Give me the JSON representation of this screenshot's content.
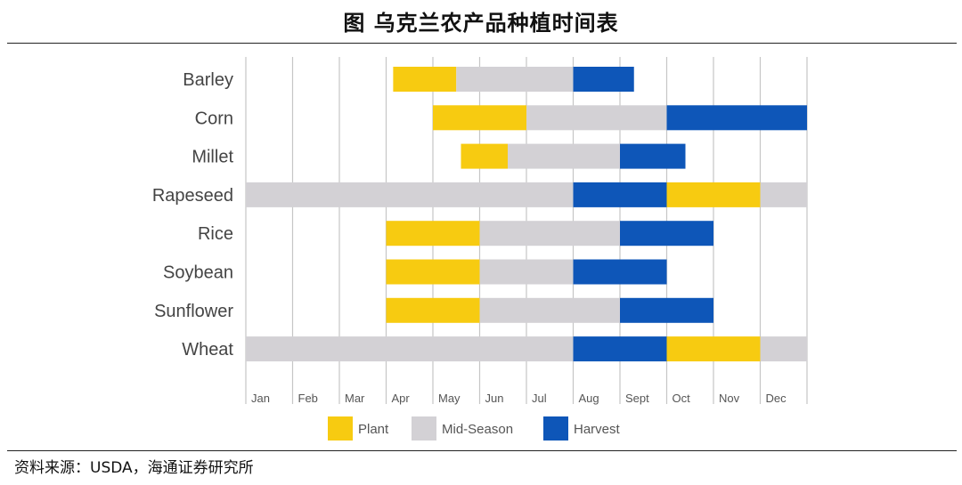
{
  "header": {
    "title": "图  乌克兰农产品种植时间表"
  },
  "footer": {
    "source": "资料来源：USDA，海通证券研究所"
  },
  "chart_data": {
    "type": "gantt",
    "title": "图  乌克兰农产品种植时间表",
    "months": [
      "Jan",
      "Feb",
      "Mar",
      "Apr",
      "May",
      "Jun",
      "Jul",
      "Aug",
      "Sept",
      "Oct",
      "Nov",
      "Dec"
    ],
    "phases": [
      {
        "name": "Plant",
        "color": "#F7CB11"
      },
      {
        "name": "Mid-Season",
        "color": "#D3D1D5"
      },
      {
        "name": "Harvest",
        "color": "#0E56B8"
      }
    ],
    "crops": [
      {
        "name": "Barley",
        "segments": [
          {
            "phase": "Plant",
            "start": 3.15,
            "end": 4.5
          },
          {
            "phase": "Mid-Season",
            "start": 4.5,
            "end": 7.0
          },
          {
            "phase": "Harvest",
            "start": 7.0,
            "end": 8.3
          }
        ]
      },
      {
        "name": "Corn",
        "segments": [
          {
            "phase": "Plant",
            "start": 4.0,
            "end": 6.0
          },
          {
            "phase": "Mid-Season",
            "start": 6.0,
            "end": 9.0
          },
          {
            "phase": "Harvest",
            "start": 9.0,
            "end": 12.0
          }
        ]
      },
      {
        "name": "Millet",
        "segments": [
          {
            "phase": "Plant",
            "start": 4.6,
            "end": 5.6
          },
          {
            "phase": "Mid-Season",
            "start": 5.6,
            "end": 8.0
          },
          {
            "phase": "Harvest",
            "start": 8.0,
            "end": 9.4
          }
        ]
      },
      {
        "name": "Rapeseed",
        "segments": [
          {
            "phase": "Mid-Season",
            "start": 0.0,
            "end": 7.0
          },
          {
            "phase": "Harvest",
            "start": 7.0,
            "end": 9.0
          },
          {
            "phase": "Plant",
            "start": 9.0,
            "end": 11.0
          },
          {
            "phase": "Mid-Season",
            "start": 11.0,
            "end": 12.0
          }
        ]
      },
      {
        "name": "Rice",
        "segments": [
          {
            "phase": "Plant",
            "start": 3.0,
            "end": 5.0
          },
          {
            "phase": "Mid-Season",
            "start": 5.0,
            "end": 8.0
          },
          {
            "phase": "Harvest",
            "start": 8.0,
            "end": 10.0
          }
        ]
      },
      {
        "name": "Soybean",
        "segments": [
          {
            "phase": "Plant",
            "start": 3.0,
            "end": 5.0
          },
          {
            "phase": "Mid-Season",
            "start": 5.0,
            "end": 7.0
          },
          {
            "phase": "Harvest",
            "start": 7.0,
            "end": 9.0
          }
        ]
      },
      {
        "name": "Sunflower",
        "segments": [
          {
            "phase": "Plant",
            "start": 3.0,
            "end": 5.0
          },
          {
            "phase": "Mid-Season",
            "start": 5.0,
            "end": 8.0
          },
          {
            "phase": "Harvest",
            "start": 8.0,
            "end": 10.0
          }
        ]
      },
      {
        "name": "Wheat",
        "segments": [
          {
            "phase": "Mid-Season",
            "start": 0.0,
            "end": 7.0
          },
          {
            "phase": "Harvest",
            "start": 7.0,
            "end": 9.0
          },
          {
            "phase": "Plant",
            "start": 9.0,
            "end": 11.0
          },
          {
            "phase": "Mid-Season",
            "start": 11.0,
            "end": 12.0
          }
        ]
      }
    ]
  }
}
